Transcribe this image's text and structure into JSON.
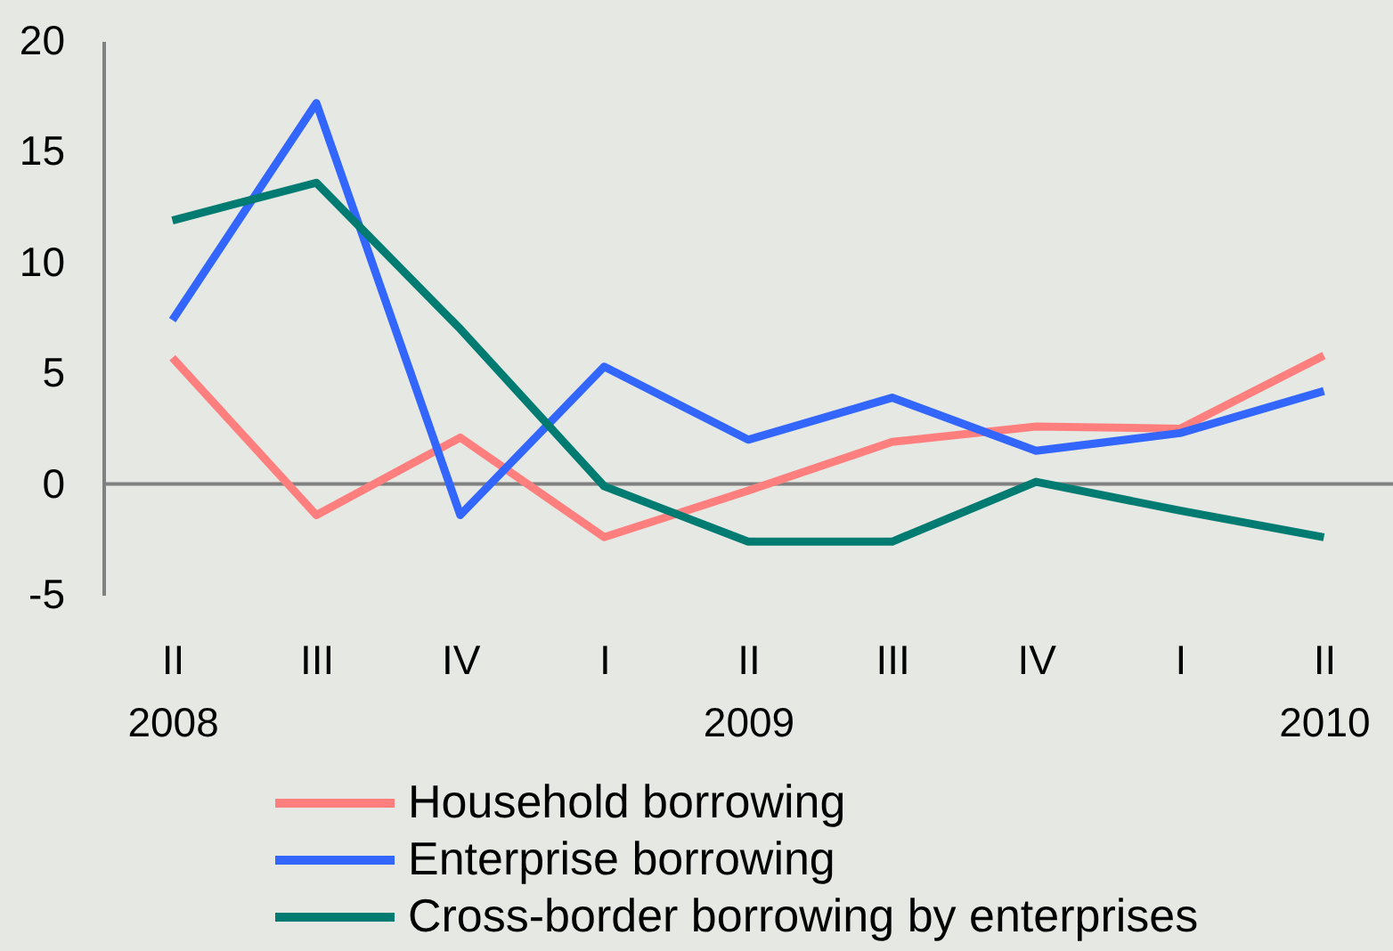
{
  "chart_data": {
    "type": "line",
    "categories": [
      "II\n2008",
      "III",
      "IV",
      "I",
      "II\n2009",
      "III",
      "IV",
      "I",
      "II\n2010"
    ],
    "series": [
      {
        "name": "Household borrowing",
        "color": "#ff7f7f",
        "values": [
          5.7,
          -1.4,
          2.1,
          -2.4,
          -0.3,
          1.9,
          2.6,
          2.5,
          5.8
        ]
      },
      {
        "name": "Enterprise borrowing",
        "color": "#3366ff",
        "values": [
          7.4,
          17.2,
          -1.4,
          5.3,
          2.0,
          3.9,
          1.5,
          2.3,
          4.2
        ]
      },
      {
        "name": "Cross-border borrowing by enterprises",
        "color": "#007b72",
        "values": [
          11.9,
          13.6,
          7.0,
          -0.1,
          -2.6,
          -2.6,
          0.1,
          -1.2,
          -2.4
        ]
      }
    ],
    "ylim": [
      -5,
      20
    ],
    "yticks": [
      -5,
      0,
      5,
      10,
      15,
      20
    ],
    "ref_lines": [
      {
        "axis": "y",
        "value": 0,
        "color": "#808080"
      }
    ],
    "legend": "bottom"
  }
}
